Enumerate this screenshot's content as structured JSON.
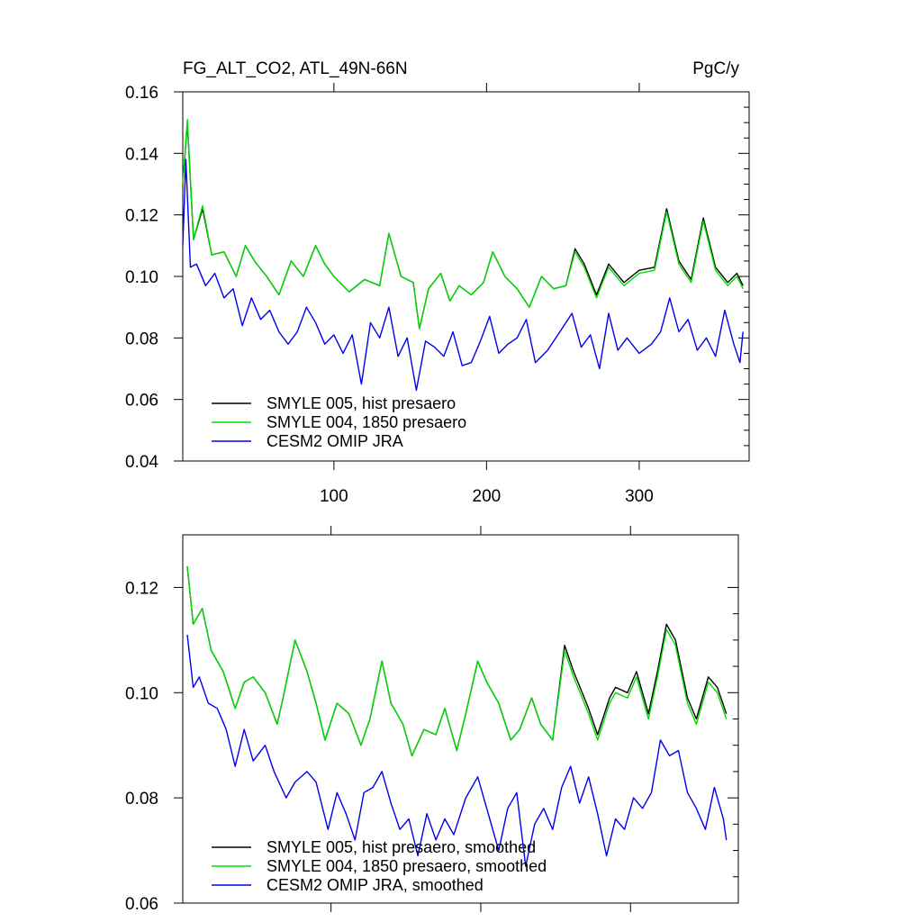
{
  "figure": {
    "title_left": "FG_ALT_CO2, ATL_49N-66N",
    "title_right": "PgC/y"
  },
  "colors": {
    "hist": "#000000",
    "y1850": "#00dd00",
    "omip": "#0000ee"
  },
  "chart_data": [
    {
      "type": "line",
      "panel": "top",
      "title": "FG_ALT_CO2, ATL_49N-66N",
      "units": "PgC/y",
      "xlim": [
        1,
        372
      ],
      "ylim": [
        0.04,
        0.16
      ],
      "xticks": [
        100,
        200,
        300
      ],
      "yticks": [
        0.04,
        0.06,
        0.08,
        0.1,
        0.12,
        0.14,
        0.16
      ],
      "ytick_labels": [
        "0.04",
        "0.06",
        "0.08",
        "0.10",
        "0.12",
        "0.14",
        "0.16"
      ],
      "xtick_labels": [
        "100",
        "200",
        "300"
      ],
      "legend": [
        "SMYLE 005, hist presaero",
        "SMYLE 004, 1850 presaero",
        "CESM2 OMIP JRA"
      ],
      "series": [
        {
          "name": "SMYLE 005, hist presaero",
          "key": "hist",
          "x": [
            1,
            4,
            8,
            14,
            20,
            28,
            36,
            42,
            48,
            56,
            64,
            72,
            80,
            88,
            94,
            100,
            110,
            120,
            130,
            136,
            144,
            152,
            156,
            162,
            170,
            176,
            182,
            190,
            198,
            204,
            212,
            220,
            228,
            236,
            244,
            252,
            258,
            264,
            272,
            280,
            290,
            300,
            310,
            318,
            326,
            334,
            342,
            350,
            358,
            364,
            368
          ],
          "values": [
            0.13,
            0.15,
            0.112,
            0.122,
            0.107,
            0.108,
            0.1,
            0.11,
            0.105,
            0.1,
            0.094,
            0.105,
            0.1,
            0.11,
            0.104,
            0.1,
            0.095,
            0.099,
            0.097,
            0.114,
            0.1,
            0.098,
            0.083,
            0.096,
            0.101,
            0.092,
            0.097,
            0.094,
            0.098,
            0.108,
            0.1,
            0.096,
            0.09,
            0.1,
            0.096,
            0.097,
            0.109,
            0.104,
            0.094,
            0.104,
            0.098,
            0.102,
            0.103,
            0.122,
            0.105,
            0.099,
            0.119,
            0.103,
            0.098,
            0.101,
            0.097
          ]
        },
        {
          "name": "SMYLE 004, 1850 presaero",
          "key": "y1850",
          "x": [
            1,
            4,
            8,
            14,
            20,
            28,
            36,
            42,
            48,
            56,
            64,
            72,
            80,
            88,
            94,
            100,
            110,
            120,
            130,
            136,
            144,
            152,
            156,
            162,
            170,
            176,
            182,
            190,
            198,
            204,
            212,
            220,
            228,
            236,
            244,
            252,
            258,
            264,
            272,
            280,
            290,
            300,
            310,
            318,
            326,
            334,
            342,
            350,
            358,
            364,
            368
          ],
          "values": [
            0.13,
            0.151,
            0.112,
            0.123,
            0.107,
            0.108,
            0.1,
            0.11,
            0.105,
            0.1,
            0.094,
            0.105,
            0.1,
            0.11,
            0.104,
            0.1,
            0.095,
            0.099,
            0.097,
            0.114,
            0.1,
            0.098,
            0.083,
            0.096,
            0.101,
            0.092,
            0.097,
            0.094,
            0.098,
            0.108,
            0.1,
            0.096,
            0.09,
            0.1,
            0.096,
            0.097,
            0.108,
            0.103,
            0.093,
            0.103,
            0.097,
            0.101,
            0.102,
            0.121,
            0.104,
            0.098,
            0.118,
            0.102,
            0.097,
            0.1,
            0.096
          ]
        },
        {
          "name": "CESM2 OMIP JRA",
          "key": "omip",
          "x": [
            1,
            3,
            6,
            10,
            16,
            22,
            28,
            34,
            40,
            46,
            52,
            58,
            64,
            70,
            76,
            82,
            88,
            94,
            100,
            106,
            112,
            118,
            124,
            130,
            136,
            142,
            148,
            154,
            160,
            166,
            172,
            178,
            184,
            190,
            196,
            202,
            208,
            214,
            220,
            226,
            232,
            240,
            248,
            256,
            262,
            268,
            274,
            280,
            286,
            292,
            300,
            308,
            314,
            320,
            326,
            332,
            338,
            344,
            350,
            356,
            362,
            366,
            368
          ],
          "values": [
            0.11,
            0.138,
            0.103,
            0.104,
            0.097,
            0.101,
            0.093,
            0.096,
            0.084,
            0.093,
            0.086,
            0.089,
            0.082,
            0.078,
            0.082,
            0.09,
            0.085,
            0.078,
            0.081,
            0.075,
            0.081,
            0.065,
            0.085,
            0.08,
            0.09,
            0.074,
            0.08,
            0.063,
            0.079,
            0.077,
            0.074,
            0.082,
            0.071,
            0.072,
            0.079,
            0.087,
            0.075,
            0.078,
            0.08,
            0.086,
            0.072,
            0.076,
            0.082,
            0.088,
            0.077,
            0.081,
            0.07,
            0.088,
            0.076,
            0.08,
            0.075,
            0.078,
            0.082,
            0.093,
            0.082,
            0.086,
            0.076,
            0.08,
            0.074,
            0.089,
            0.078,
            0.072,
            0.082
          ]
        }
      ]
    },
    {
      "type": "line",
      "panel": "bottom",
      "xlim": [
        1,
        372
      ],
      "ylim": [
        0.06,
        0.13
      ],
      "xticks": [
        100,
        200,
        300
      ],
      "yticks": [
        0.06,
        0.08,
        0.1,
        0.12
      ],
      "ytick_labels": [
        "0.06",
        "0.08",
        "0.10",
        "0.12"
      ],
      "legend": [
        "SMYLE 005, hist presaero, smoothed",
        "SMYLE 004, 1850 presaero, smoothed",
        "CESM2 OMIP JRA, smoothed"
      ],
      "series": [
        {
          "name": "SMYLE 005, hist presaero, smoothed",
          "key": "hist",
          "x": [
            4,
            8,
            14,
            20,
            28,
            36,
            42,
            48,
            56,
            64,
            68,
            76,
            84,
            90,
            96,
            104,
            112,
            120,
            126,
            134,
            140,
            148,
            154,
            162,
            170,
            176,
            184,
            190,
            198,
            204,
            212,
            220,
            226,
            234,
            240,
            248,
            256,
            262,
            272,
            278,
            286,
            290,
            298,
            304,
            312,
            318,
            324,
            330,
            338,
            344,
            352,
            358,
            364
          ],
          "values": [
            0.124,
            0.113,
            0.116,
            0.108,
            0.104,
            0.097,
            0.102,
            0.103,
            0.1,
            0.094,
            0.099,
            0.11,
            0.104,
            0.098,
            0.091,
            0.098,
            0.096,
            0.09,
            0.095,
            0.106,
            0.098,
            0.094,
            0.088,
            0.093,
            0.092,
            0.097,
            0.089,
            0.096,
            0.106,
            0.102,
            0.098,
            0.091,
            0.093,
            0.099,
            0.094,
            0.091,
            0.109,
            0.104,
            0.097,
            0.092,
            0.099,
            0.101,
            0.1,
            0.104,
            0.096,
            0.104,
            0.113,
            0.11,
            0.099,
            0.095,
            0.103,
            0.101,
            0.096
          ]
        },
        {
          "name": "SMYLE 004, 1850 presaero, smoothed",
          "key": "y1850",
          "x": [
            4,
            8,
            14,
            20,
            28,
            36,
            42,
            48,
            56,
            64,
            68,
            76,
            84,
            90,
            96,
            104,
            112,
            120,
            126,
            134,
            140,
            148,
            154,
            162,
            170,
            176,
            184,
            190,
            198,
            204,
            212,
            220,
            226,
            234,
            240,
            248,
            256,
            262,
            272,
            278,
            286,
            290,
            298,
            304,
            312,
            318,
            324,
            330,
            338,
            344,
            352,
            358,
            364
          ],
          "values": [
            0.124,
            0.113,
            0.116,
            0.108,
            0.104,
            0.097,
            0.102,
            0.103,
            0.1,
            0.094,
            0.099,
            0.11,
            0.104,
            0.098,
            0.091,
            0.098,
            0.096,
            0.09,
            0.095,
            0.106,
            0.098,
            0.094,
            0.088,
            0.093,
            0.092,
            0.097,
            0.089,
            0.096,
            0.106,
            0.102,
            0.098,
            0.091,
            0.093,
            0.099,
            0.094,
            0.091,
            0.108,
            0.103,
            0.096,
            0.091,
            0.098,
            0.1,
            0.099,
            0.103,
            0.095,
            0.103,
            0.112,
            0.109,
            0.098,
            0.094,
            0.102,
            0.1,
            0.095
          ]
        },
        {
          "name": "CESM2 OMIP JRA, smoothed",
          "key": "omip",
          "x": [
            4,
            8,
            12,
            18,
            24,
            30,
            36,
            42,
            48,
            56,
            62,
            70,
            76,
            84,
            90,
            98,
            104,
            110,
            116,
            122,
            128,
            134,
            140,
            146,
            152,
            158,
            164,
            170,
            176,
            182,
            190,
            198,
            206,
            212,
            218,
            224,
            230,
            236,
            242,
            248,
            254,
            260,
            266,
            272,
            278,
            284,
            290,
            296,
            302,
            308,
            314,
            320,
            326,
            332,
            338,
            344,
            350,
            356,
            362,
            364
          ],
          "values": [
            0.111,
            0.101,
            0.103,
            0.098,
            0.097,
            0.093,
            0.086,
            0.093,
            0.087,
            0.09,
            0.085,
            0.08,
            0.083,
            0.085,
            0.083,
            0.074,
            0.081,
            0.077,
            0.072,
            0.081,
            0.082,
            0.085,
            0.079,
            0.074,
            0.076,
            0.069,
            0.077,
            0.072,
            0.076,
            0.073,
            0.08,
            0.084,
            0.076,
            0.07,
            0.078,
            0.081,
            0.067,
            0.075,
            0.078,
            0.074,
            0.082,
            0.086,
            0.079,
            0.084,
            0.077,
            0.069,
            0.076,
            0.074,
            0.08,
            0.078,
            0.081,
            0.091,
            0.088,
            0.089,
            0.081,
            0.078,
            0.074,
            0.082,
            0.076,
            0.072
          ]
        }
      ]
    }
  ]
}
